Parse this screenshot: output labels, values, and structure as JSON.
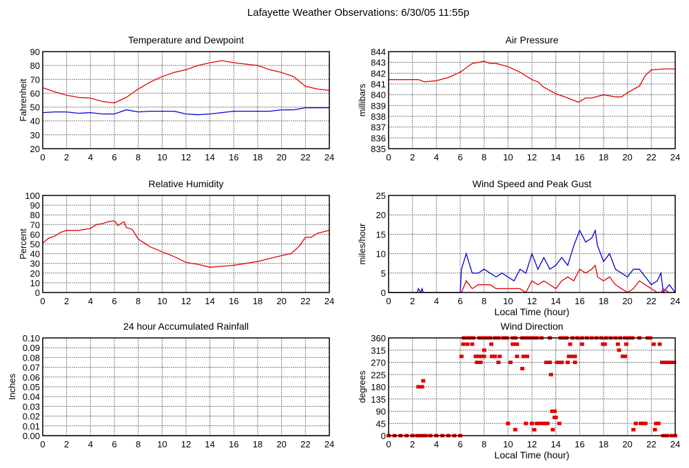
{
  "page": {
    "title": "Lafayette Weather Observations: 6/30/05 11:55p"
  },
  "chart_data": [
    {
      "id": "temp",
      "type": "line",
      "title": "Temperature and Dewpoint",
      "xlabel": "",
      "ylabel": "Fahrenheit",
      "xlim": [
        0,
        24
      ],
      "ylim": [
        20,
        90
      ],
      "xticks": [
        "0",
        "2",
        "4",
        "6",
        "8",
        "10",
        "12",
        "14",
        "16",
        "18",
        "20",
        "22",
        "24"
      ],
      "yticks": [
        "20",
        "30",
        "40",
        "50",
        "60",
        "70",
        "80",
        "90"
      ],
      "grid": true,
      "x": [
        0,
        1,
        2,
        3,
        4,
        5,
        6,
        7,
        8,
        9,
        10,
        11,
        12,
        13,
        14,
        15,
        16,
        17,
        18,
        19,
        20,
        21,
        22,
        23,
        24
      ],
      "series": [
        {
          "name": "Temperature",
          "color": "#e00000",
          "values": [
            64,
            61,
            58.5,
            57,
            56.5,
            54,
            53,
            57,
            63,
            68,
            72,
            75,
            77,
            80,
            82,
            83.5,
            82,
            81,
            80,
            77,
            75,
            72,
            65,
            63,
            62
          ]
        },
        {
          "name": "Dewpoint",
          "color": "#0000d0",
          "values": [
            46,
            46.5,
            46.5,
            45.5,
            46,
            45,
            45,
            48,
            46.5,
            47,
            47,
            47,
            45,
            44.5,
            45,
            46,
            47,
            47,
            47,
            47,
            48,
            48,
            49.5,
            49.5,
            49.5
          ]
        }
      ]
    },
    {
      "id": "pressure",
      "type": "line",
      "title": "Air Pressure",
      "xlabel": "",
      "ylabel": "millibars",
      "xlim": [
        0,
        24
      ],
      "ylim": [
        835,
        844
      ],
      "xticks": [
        "0",
        "2",
        "4",
        "6",
        "8",
        "10",
        "12",
        "14",
        "16",
        "18",
        "20",
        "22",
        "24"
      ],
      "yticks": [
        "835",
        "836",
        "837",
        "838",
        "839",
        "840",
        "841",
        "842",
        "843",
        "844"
      ],
      "grid": true,
      "x": [
        0,
        1,
        2,
        2.5,
        3,
        4,
        5,
        6,
        6.5,
        7,
        8,
        8.5,
        9,
        10,
        11,
        12,
        12.5,
        13,
        14,
        15,
        15.9,
        16.5,
        17,
        18,
        19,
        19.5,
        20,
        21,
        21.5,
        22,
        23,
        24
      ],
      "series": [
        {
          "name": "Air Pressure",
          "color": "#e00000",
          "values": [
            841.4,
            841.4,
            841.4,
            841.4,
            841.2,
            841.3,
            841.6,
            842.1,
            842.5,
            842.9,
            843.1,
            842.9,
            842.9,
            842.6,
            842.1,
            841.4,
            841.2,
            840.7,
            840.1,
            839.7,
            839.3,
            839.7,
            839.7,
            840,
            839.8,
            839.8,
            840.2,
            840.8,
            841.8,
            842.3,
            842.4,
            842.4
          ]
        }
      ]
    },
    {
      "id": "humidity",
      "type": "line",
      "title": "Relative Humidity",
      "xlabel": "",
      "ylabel": "Percent",
      "xlim": [
        0,
        24
      ],
      "ylim": [
        0,
        100
      ],
      "xticks": [
        "0",
        "2",
        "4",
        "6",
        "8",
        "10",
        "12",
        "14",
        "16",
        "18",
        "20",
        "22",
        "24"
      ],
      "yticks": [
        "0",
        "10",
        "20",
        "30",
        "40",
        "50",
        "60",
        "70",
        "80",
        "90",
        "100"
      ],
      "grid": true,
      "x": [
        0,
        0.5,
        1,
        1.5,
        2,
        3,
        4,
        4.5,
        5,
        5.5,
        6,
        6.3,
        6.8,
        7,
        7.5,
        8,
        9,
        10,
        11,
        12,
        13,
        14,
        15,
        16,
        17,
        18,
        19,
        20,
        20.8,
        21.5,
        22,
        22.5,
        23,
        24
      ],
      "series": [
        {
          "name": "Relative Humidity",
          "color": "#e00000",
          "values": [
            51,
            56,
            58,
            62,
            64,
            64,
            66,
            70,
            71,
            73,
            74,
            69,
            73,
            67,
            65,
            55,
            47,
            42,
            37,
            31,
            29,
            26,
            27,
            28,
            30,
            32,
            35,
            38,
            40,
            48,
            57,
            57,
            61,
            64
          ]
        }
      ]
    },
    {
      "id": "wind-speed",
      "type": "line",
      "title": "Wind Speed and Peak Gust",
      "xlabel": "Local Time (hour)",
      "ylabel": "miles/hour",
      "xlim": [
        0,
        24
      ],
      "ylim": [
        0,
        25
      ],
      "xticks": [
        "0",
        "2",
        "4",
        "6",
        "8",
        "10",
        "12",
        "14",
        "16",
        "18",
        "20",
        "22",
        "24"
      ],
      "yticks": [
        "0",
        "5",
        "10",
        "15",
        "20",
        "25"
      ],
      "grid": true,
      "x": [
        0,
        2.4,
        2.5,
        2.7,
        2.8,
        2.9,
        3,
        6,
        6.1,
        6.5,
        7,
        7.5,
        8,
        8.5,
        9,
        9.5,
        10,
        10.5,
        11,
        11.5,
        12,
        12.5,
        13,
        13.5,
        14,
        14.5,
        15,
        15.5,
        16,
        16.5,
        17,
        17.3,
        17.5,
        18,
        18.5,
        19,
        19.5,
        20,
        20.5,
        21,
        21.5,
        22,
        22.5,
        22.8,
        23,
        23.5,
        24
      ],
      "series": [
        {
          "name": "Peak Gust",
          "color": "#0000d0",
          "values": [
            0,
            0,
            1,
            0,
            1,
            0,
            0,
            0,
            6,
            10,
            5,
            5,
            6,
            5,
            4,
            5,
            4,
            3,
            6,
            5,
            10,
            6,
            9,
            6,
            7,
            9,
            7,
            12,
            16,
            13,
            14,
            16,
            12,
            8,
            10,
            6,
            5,
            4,
            6,
            6,
            4,
            2,
            3,
            5,
            0,
            2,
            0
          ]
        },
        {
          "name": "Wind Speed",
          "color": "#e00000",
          "values": [
            0,
            0,
            0,
            0,
            0,
            0,
            0,
            0,
            0,
            3,
            1,
            2,
            2,
            2,
            1,
            1,
            1,
            1,
            1,
            0,
            3,
            2,
            3,
            2,
            1,
            3,
            4,
            3,
            6,
            5,
            6,
            7,
            4,
            3,
            4,
            2,
            1,
            0,
            1,
            3,
            2,
            1,
            0,
            0,
            1,
            0,
            0
          ]
        }
      ]
    },
    {
      "id": "rainfall",
      "type": "line",
      "title": "24 hour Accumulated Rainfall",
      "xlabel": "",
      "ylabel": "Inches",
      "xlim": [
        0,
        24
      ],
      "ylim": [
        0,
        0.1
      ],
      "xticks": [
        "0",
        "2",
        "4",
        "6",
        "8",
        "10",
        "12",
        "14",
        "16",
        "18",
        "20",
        "22",
        "24"
      ],
      "yticks": [
        "0.00",
        "0.01",
        "0.02",
        "0.03",
        "0.04",
        "0.05",
        "0.06",
        "0.07",
        "0.08",
        "0.09",
        "0.10"
      ],
      "grid": true,
      "x": [
        0,
        24
      ],
      "series": [
        {
          "name": "Rainfall",
          "color": "#e00000",
          "values": [
            0,
            0
          ]
        }
      ]
    },
    {
      "id": "wind-direction",
      "type": "scatter",
      "title": "Wind Direction",
      "xlabel": "Local Time (hour)",
      "ylabel": "degrees",
      "xlim": [
        0,
        24
      ],
      "ylim": [
        0,
        360
      ],
      "xticks": [
        "0",
        "2",
        "4",
        "6",
        "8",
        "10",
        "12",
        "14",
        "16",
        "18",
        "20",
        "22",
        "24"
      ],
      "yticks": [
        "0",
        "45",
        "90",
        "135",
        "180",
        "225",
        "270",
        "315",
        "360"
      ],
      "grid": true,
      "color": "#e00000",
      "points": [
        [
          0,
          0
        ],
        [
          0.5,
          0
        ],
        [
          1,
          0
        ],
        [
          1.5,
          0
        ],
        [
          2,
          0
        ],
        [
          2.4,
          0
        ],
        [
          2.6,
          0
        ],
        [
          2.8,
          0
        ],
        [
          3.1,
          0
        ],
        [
          3.5,
          0
        ],
        [
          4,
          0
        ],
        [
          4.5,
          0
        ],
        [
          5,
          0
        ],
        [
          5.5,
          0
        ],
        [
          6,
          0
        ],
        [
          2.5,
          180
        ],
        [
          2.65,
          180
        ],
        [
          2.8,
          180
        ],
        [
          2.9,
          202
        ],
        [
          6.1,
          292
        ],
        [
          6.25,
          337
        ],
        [
          6.3,
          360
        ],
        [
          6.6,
          360
        ],
        [
          6.9,
          360
        ],
        [
          7.1,
          360
        ],
        [
          6.6,
          337
        ],
        [
          7,
          337
        ],
        [
          7.3,
          292
        ],
        [
          7.5,
          292
        ],
        [
          7.4,
          270
        ],
        [
          7.7,
          270
        ],
        [
          7.6,
          360
        ],
        [
          7.8,
          292
        ],
        [
          8,
          292
        ],
        [
          8,
          315
        ],
        [
          7.9,
          360
        ],
        [
          8.2,
          360
        ],
        [
          8.5,
          360
        ],
        [
          8.6,
          337
        ],
        [
          8.65,
          292
        ],
        [
          8.9,
          360
        ],
        [
          9.2,
          360
        ],
        [
          8.9,
          292
        ],
        [
          9.2,
          270
        ],
        [
          9.3,
          292
        ],
        [
          9.6,
          360
        ],
        [
          9.9,
          360
        ],
        [
          10,
          45
        ],
        [
          10.2,
          270
        ],
        [
          10.4,
          360
        ],
        [
          10.6,
          360
        ],
        [
          10.4,
          337
        ],
        [
          10.6,
          337
        ],
        [
          10.75,
          337
        ],
        [
          10.6,
          22
        ],
        [
          10.75,
          292
        ],
        [
          11.2,
          360
        ],
        [
          11.3,
          292
        ],
        [
          11.2,
          247
        ],
        [
          11.5,
          45
        ],
        [
          11.6,
          292
        ],
        [
          11.5,
          360
        ],
        [
          11.8,
          360
        ],
        [
          12,
          45
        ],
        [
          12.1,
          360
        ],
        [
          12.2,
          22
        ],
        [
          12.4,
          360
        ],
        [
          12.4,
          45
        ],
        [
          12.6,
          45
        ],
        [
          12.8,
          360
        ],
        [
          12.9,
          45
        ],
        [
          13.1,
          45
        ],
        [
          13.3,
          45
        ],
        [
          13.2,
          270
        ],
        [
          13.5,
          270
        ],
        [
          13.5,
          360
        ],
        [
          13.6,
          225
        ],
        [
          13.7,
          90
        ],
        [
          13.75,
          22
        ],
        [
          13.9,
          90
        ],
        [
          13.9,
          67
        ],
        [
          14,
          67
        ],
        [
          14.1,
          270
        ],
        [
          14.3,
          270
        ],
        [
          14.3,
          45
        ],
        [
          14.5,
          270
        ],
        [
          14.4,
          360
        ],
        [
          14.6,
          360
        ],
        [
          14.9,
          360
        ],
        [
          15,
          270
        ],
        [
          15.1,
          292
        ],
        [
          15.3,
          292
        ],
        [
          15.2,
          337
        ],
        [
          15.4,
          360
        ],
        [
          15.6,
          292
        ],
        [
          15.6,
          270
        ],
        [
          15.8,
          360
        ],
        [
          16.2,
          360
        ],
        [
          16.2,
          337
        ],
        [
          16.6,
          360
        ],
        [
          17,
          360
        ],
        [
          17.4,
          360
        ],
        [
          17.8,
          360
        ],
        [
          17.95,
          337
        ],
        [
          18.1,
          337
        ],
        [
          18.2,
          360
        ],
        [
          18.6,
          360
        ],
        [
          19,
          360
        ],
        [
          19.2,
          337
        ],
        [
          19.3,
          315
        ],
        [
          19.4,
          360
        ],
        [
          19.6,
          292
        ],
        [
          19.8,
          292
        ],
        [
          19.8,
          360
        ],
        [
          19.9,
          337
        ],
        [
          20,
          360
        ],
        [
          20.2,
          360
        ],
        [
          20.4,
          360
        ],
        [
          20.5,
          22
        ],
        [
          20.7,
          45
        ],
        [
          21,
          360
        ],
        [
          21.1,
          45
        ],
        [
          21.3,
          45
        ],
        [
          21.5,
          45
        ],
        [
          21.7,
          360
        ],
        [
          21.9,
          360
        ],
        [
          22.2,
          337
        ],
        [
          22.3,
          22
        ],
        [
          22.4,
          45
        ],
        [
          22.6,
          45
        ],
        [
          22.7,
          337
        ],
        [
          22.9,
          270
        ],
        [
          23.1,
          270
        ],
        [
          23.4,
          270
        ],
        [
          23.6,
          270
        ],
        [
          23.9,
          270
        ],
        [
          23,
          0
        ],
        [
          23.3,
          0
        ],
        [
          23.7,
          0
        ],
        [
          24,
          0
        ]
      ]
    }
  ]
}
